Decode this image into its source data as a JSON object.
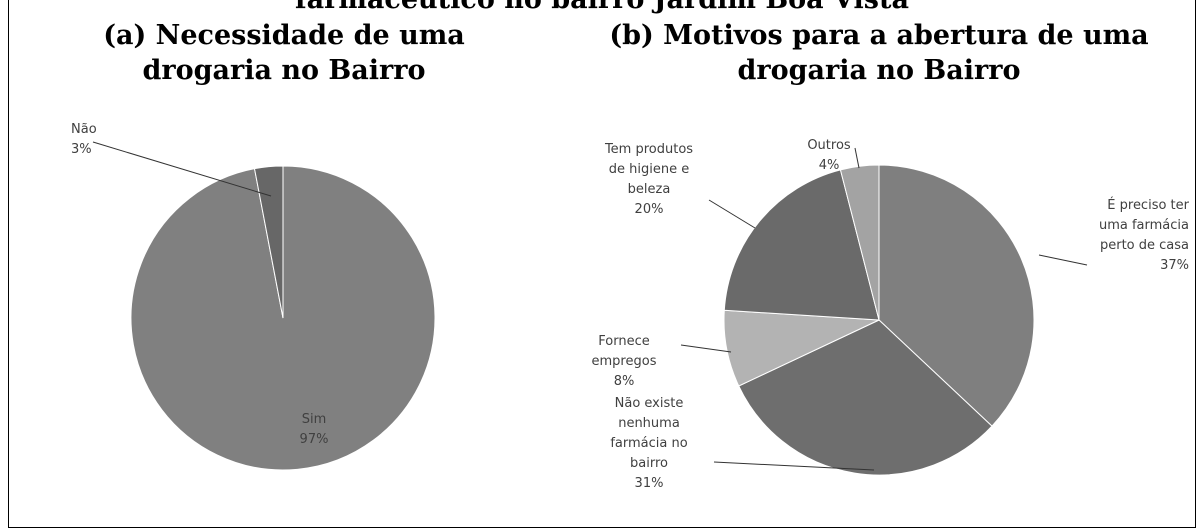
{
  "heading": "farmacêutico no bairro Jardim Boa Vista",
  "chart_data": [
    {
      "type": "pie",
      "title": "(a) Necessidade de uma\ndrogaria no Bairro",
      "categories": [
        "Sim",
        "Não"
      ],
      "values": [
        97,
        3
      ],
      "value_labels": [
        "97%",
        "3%"
      ],
      "colors": [
        "#808080",
        "#676767"
      ]
    },
    {
      "type": "pie",
      "title": "(b) Motivos para a abertura de uma\ndrogaria no Bairro",
      "categories": [
        "É preciso ter\numa farmácia\nperto de casa",
        "Não existe\nnenhuma\nfarmácia no\nbairro",
        "Fornece\nempregos",
        "Tem produtos\nde higiene e\nbeleza",
        "Outros"
      ],
      "values": [
        37,
        31,
        8,
        20,
        4
      ],
      "value_labels": [
        "37%",
        "31%",
        "8%",
        "20%",
        "4%"
      ],
      "colors": [
        "#7f7f7f",
        "#6e6e6e",
        "#b3b3b3",
        "#6a6a6a",
        "#a3a3a3"
      ]
    }
  ]
}
